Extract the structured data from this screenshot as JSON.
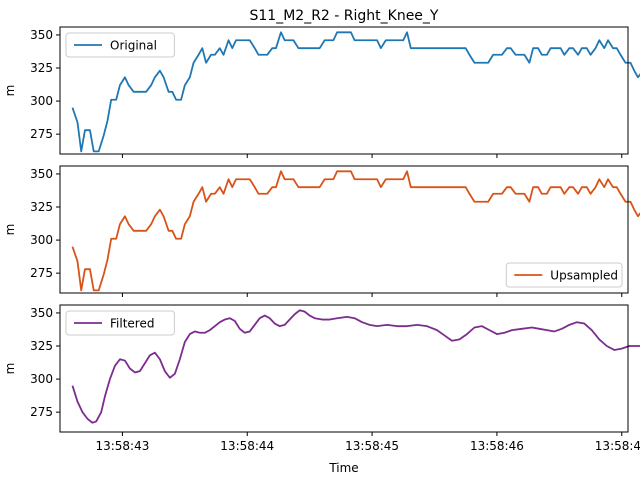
{
  "chart_data": {
    "type": "line",
    "title": "S11_M2_R2 - Right_Knee_Y",
    "xlabel": "Time",
    "ylabel": "m",
    "x_ticks": [
      "13:58:43",
      "13:58:44",
      "13:58:45",
      "13:58:46",
      "13:58:47"
    ],
    "x_range_seconds": [
      -0.5,
      4.05
    ],
    "y_ticks": [
      275,
      300,
      325,
      350
    ],
    "ylim": [
      260,
      356
    ],
    "legend_position": "upper-left / lower-right / upper-left",
    "panels": [
      {
        "legend": "Original",
        "legend_pos": "top-left",
        "color": "#1f77b4",
        "series": [
          [
            -0.4,
            295
          ],
          [
            -0.36,
            284
          ],
          [
            -0.33,
            262
          ],
          [
            -0.3,
            278
          ],
          [
            -0.26,
            278
          ],
          [
            -0.23,
            262
          ],
          [
            -0.19,
            262
          ],
          [
            -0.15,
            274
          ],
          [
            -0.12,
            285
          ],
          [
            -0.09,
            301
          ],
          [
            -0.05,
            301
          ],
          [
            -0.02,
            312
          ],
          [
            0.02,
            318
          ],
          [
            0.05,
            312
          ],
          [
            0.09,
            307
          ],
          [
            0.12,
            307
          ],
          [
            0.16,
            307
          ],
          [
            0.19,
            307
          ],
          [
            0.23,
            312
          ],
          [
            0.26,
            318
          ],
          [
            0.3,
            323
          ],
          [
            0.33,
            318
          ],
          [
            0.37,
            307
          ],
          [
            0.4,
            307
          ],
          [
            0.43,
            301
          ],
          [
            0.47,
            301
          ],
          [
            0.5,
            312
          ],
          [
            0.54,
            318
          ],
          [
            0.57,
            329
          ],
          [
            0.61,
            335
          ],
          [
            0.64,
            340
          ],
          [
            0.67,
            329
          ],
          [
            0.71,
            335
          ],
          [
            0.74,
            335
          ],
          [
            0.78,
            340
          ],
          [
            0.81,
            335
          ],
          [
            0.85,
            346
          ],
          [
            0.88,
            340
          ],
          [
            0.91,
            346
          ],
          [
            0.95,
            346
          ],
          [
            0.98,
            346
          ],
          [
            1.02,
            346
          ],
          [
            1.06,
            340
          ],
          [
            1.09,
            335
          ],
          [
            1.13,
            335
          ],
          [
            1.16,
            335
          ],
          [
            1.2,
            340
          ],
          [
            1.23,
            340
          ],
          [
            1.27,
            352
          ],
          [
            1.3,
            346
          ],
          [
            1.34,
            346
          ],
          [
            1.37,
            346
          ],
          [
            1.41,
            340
          ],
          [
            1.44,
            340
          ],
          [
            1.48,
            340
          ],
          [
            1.51,
            340
          ],
          [
            1.55,
            340
          ],
          [
            1.58,
            340
          ],
          [
            1.62,
            346
          ],
          [
            1.65,
            346
          ],
          [
            1.69,
            346
          ],
          [
            1.72,
            352
          ],
          [
            1.76,
            352
          ],
          [
            1.79,
            352
          ],
          [
            1.83,
            352
          ],
          [
            1.86,
            346
          ],
          [
            1.9,
            346
          ],
          [
            1.93,
            346
          ],
          [
            1.97,
            346
          ],
          [
            2.0,
            346
          ],
          [
            2.04,
            346
          ],
          [
            2.07,
            340
          ],
          [
            2.11,
            346
          ],
          [
            2.14,
            346
          ],
          [
            2.18,
            346
          ],
          [
            2.21,
            346
          ],
          [
            2.25,
            346
          ],
          [
            2.28,
            352
          ],
          [
            2.31,
            340
          ],
          [
            2.35,
            340
          ],
          [
            2.75,
            340
          ],
          [
            2.78,
            335
          ],
          [
            2.82,
            329
          ],
          [
            2.93,
            329
          ],
          [
            2.97,
            335
          ],
          [
            3.04,
            335
          ],
          [
            3.08,
            340
          ],
          [
            3.11,
            340
          ],
          [
            3.15,
            335
          ],
          [
            3.22,
            335
          ],
          [
            3.26,
            329
          ],
          [
            3.29,
            340
          ],
          [
            3.33,
            340
          ],
          [
            3.36,
            335
          ],
          [
            3.4,
            335
          ],
          [
            3.43,
            340
          ],
          [
            3.51,
            340
          ],
          [
            3.54,
            335
          ],
          [
            3.58,
            340
          ],
          [
            3.61,
            340
          ],
          [
            3.65,
            335
          ],
          [
            3.68,
            340
          ],
          [
            3.72,
            340
          ],
          [
            3.75,
            335
          ],
          [
            3.79,
            340
          ],
          [
            3.82,
            346
          ],
          [
            3.86,
            340
          ],
          [
            3.89,
            346
          ],
          [
            3.93,
            340
          ],
          [
            3.96,
            340
          ],
          [
            3.99,
            335
          ],
          [
            4.03,
            329
          ],
          [
            4.07,
            329
          ],
          [
            4.1,
            323
          ],
          [
            4.13,
            318
          ],
          [
            4.17,
            323
          ],
          [
            4.2,
            323
          ],
          [
            4.24,
            329
          ],
          [
            4.27,
            323
          ]
        ]
      },
      {
        "legend": "Upsampled",
        "legend_pos": "bottom-right",
        "color": "#d95319",
        "series": "same-as-original"
      },
      {
        "legend": "Filtered",
        "legend_pos": "top-left",
        "color": "#7b2d8e",
        "series": [
          [
            -0.4,
            295
          ],
          [
            -0.36,
            283
          ],
          [
            -0.32,
            275
          ],
          [
            -0.28,
            270
          ],
          [
            -0.24,
            267
          ],
          [
            -0.21,
            268
          ],
          [
            -0.17,
            275
          ],
          [
            -0.14,
            287
          ],
          [
            -0.1,
            300
          ],
          [
            -0.06,
            310
          ],
          [
            -0.02,
            315
          ],
          [
            0.02,
            314
          ],
          [
            0.06,
            308
          ],
          [
            0.1,
            305
          ],
          [
            0.14,
            306
          ],
          [
            0.18,
            312
          ],
          [
            0.22,
            318
          ],
          [
            0.26,
            320
          ],
          [
            0.3,
            315
          ],
          [
            0.34,
            306
          ],
          [
            0.38,
            301
          ],
          [
            0.42,
            304
          ],
          [
            0.46,
            315
          ],
          [
            0.5,
            328
          ],
          [
            0.54,
            334
          ],
          [
            0.58,
            336
          ],
          [
            0.62,
            335
          ],
          [
            0.66,
            335
          ],
          [
            0.7,
            337
          ],
          [
            0.74,
            340
          ],
          [
            0.78,
            343
          ],
          [
            0.82,
            345
          ],
          [
            0.86,
            346
          ],
          [
            0.9,
            344
          ],
          [
            0.94,
            338
          ],
          [
            0.98,
            335
          ],
          [
            1.02,
            336
          ],
          [
            1.06,
            341
          ],
          [
            1.1,
            346
          ],
          [
            1.14,
            348
          ],
          [
            1.18,
            346
          ],
          [
            1.22,
            342
          ],
          [
            1.26,
            340
          ],
          [
            1.3,
            341
          ],
          [
            1.34,
            345
          ],
          [
            1.38,
            349
          ],
          [
            1.42,
            352
          ],
          [
            1.46,
            351
          ],
          [
            1.5,
            348
          ],
          [
            1.54,
            346
          ],
          [
            1.6,
            345
          ],
          [
            1.66,
            345
          ],
          [
            1.72,
            346
          ],
          [
            1.8,
            347
          ],
          [
            1.86,
            346
          ],
          [
            1.92,
            343
          ],
          [
            1.98,
            341
          ],
          [
            2.04,
            340
          ],
          [
            2.12,
            341
          ],
          [
            2.2,
            340
          ],
          [
            2.28,
            340
          ],
          [
            2.36,
            341
          ],
          [
            2.44,
            340
          ],
          [
            2.52,
            337
          ],
          [
            2.58,
            333
          ],
          [
            2.64,
            329
          ],
          [
            2.7,
            330
          ],
          [
            2.76,
            334
          ],
          [
            2.82,
            339
          ],
          [
            2.88,
            340
          ],
          [
            2.94,
            337
          ],
          [
            3.0,
            334
          ],
          [
            3.06,
            335
          ],
          [
            3.12,
            337
          ],
          [
            3.2,
            338
          ],
          [
            3.28,
            339
          ],
          [
            3.34,
            338
          ],
          [
            3.4,
            337
          ],
          [
            3.46,
            336
          ],
          [
            3.52,
            338
          ],
          [
            3.58,
            341
          ],
          [
            3.64,
            343
          ],
          [
            3.7,
            342
          ],
          [
            3.76,
            337
          ],
          [
            3.82,
            330
          ],
          [
            3.88,
            325
          ],
          [
            3.94,
            322
          ],
          [
            4.0,
            323
          ],
          [
            4.06,
            325
          ],
          [
            4.12,
            325
          ],
          [
            4.18,
            325
          ],
          [
            4.27,
            325
          ]
        ]
      }
    ]
  }
}
